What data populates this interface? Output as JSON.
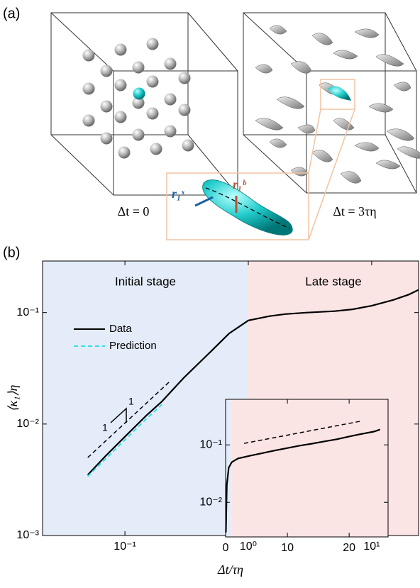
{
  "panel_a": {
    "label": "(a)",
    "left_caption": "Δt = 0",
    "right_caption": "Δt = 3τη",
    "vector_s": "r₁ˢ",
    "vector_b": "r₁ᵇ"
  },
  "panel_b_label": "(b)",
  "chart_data": [
    {
      "type": "line",
      "xlabel": "Δt/τη",
      "ylabel": "⟨κ₁⟩η",
      "xlog": true,
      "ylog": true,
      "xlim": [
        0.0215,
        24
      ],
      "ylim": [
        0.001,
        0.29
      ],
      "xticks": [
        {
          "value": 0.1,
          "label": "10⁻¹"
        },
        {
          "value": 1,
          "label": "10⁰"
        },
        {
          "value": 10,
          "label": "10¹"
        }
      ],
      "yticks": [
        {
          "value": 0.001,
          "label": "10⁻³"
        },
        {
          "value": 0.01,
          "label": "10⁻²"
        },
        {
          "value": 0.1,
          "label": "10⁻¹"
        }
      ],
      "regions": [
        {
          "label": "Initial stage",
          "xlim": [
            0.0215,
            1
          ],
          "color": "#e4ecf9"
        },
        {
          "label": "Late stage",
          "xlim": [
            1,
            24
          ],
          "color": "#fbe4e4"
        }
      ],
      "legend": "upper left",
      "series": [
        {
          "name": "Data",
          "color": "#000000",
          "dashed": false,
          "x": [
            0.05,
            0.07,
            0.1,
            0.15,
            0.2,
            0.3,
            0.5,
            0.7,
            1,
            1.5,
            2,
            3,
            5,
            7,
            10,
            15,
            20,
            24
          ],
          "values": [
            0.0035,
            0.0052,
            0.0077,
            0.012,
            0.016,
            0.026,
            0.045,
            0.065,
            0.085,
            0.093,
            0.097,
            0.1,
            0.103,
            0.107,
            0.115,
            0.13,
            0.145,
            0.16
          ]
        },
        {
          "name": "Prediction",
          "color": "#33e0e8",
          "dashed": true,
          "x": [
            0.05,
            0.1,
            0.15,
            0.2
          ],
          "values": [
            0.0034,
            0.0072,
            0.0112,
            0.015
          ]
        }
      ],
      "reference_line": {
        "x": [
          0.05,
          0.23
        ],
        "values": [
          0.005,
          0.024
        ],
        "color": "#000000"
      },
      "slope_labels": [
        "1",
        "1"
      ]
    },
    {
      "type": "line",
      "xlog": false,
      "ylog": true,
      "xlim": [
        0,
        26.3
      ],
      "ylim": [
        0.0025,
        0.62
      ],
      "xticks": [
        0,
        10,
        20
      ],
      "yticks": [
        {
          "value": 0.01,
          "label": "10⁻²"
        },
        {
          "value": 0.1,
          "label": "10⁻¹"
        }
      ],
      "regions": [
        {
          "xlim": [
            0,
            1
          ],
          "color": "#e4ecf9"
        },
        {
          "xlim": [
            1,
            26.3
          ],
          "color": "#fbe4e4"
        }
      ],
      "series": [
        {
          "color": "#000000",
          "dashed": false,
          "x": [
            0.05,
            0.2,
            0.5,
            1,
            2,
            4,
            6,
            8,
            10,
            12,
            14,
            16,
            18,
            20,
            22,
            24,
            25
          ],
          "values": [
            0.003,
            0.02,
            0.04,
            0.05,
            0.058,
            0.065,
            0.072,
            0.08,
            0.088,
            0.097,
            0.105,
            0.115,
            0.125,
            0.14,
            0.155,
            0.17,
            0.185
          ]
        }
      ],
      "reference_line": {
        "x": [
          3,
          22
        ],
        "values": [
          0.106,
          0.26
        ],
        "color": "#000000"
      }
    }
  ]
}
